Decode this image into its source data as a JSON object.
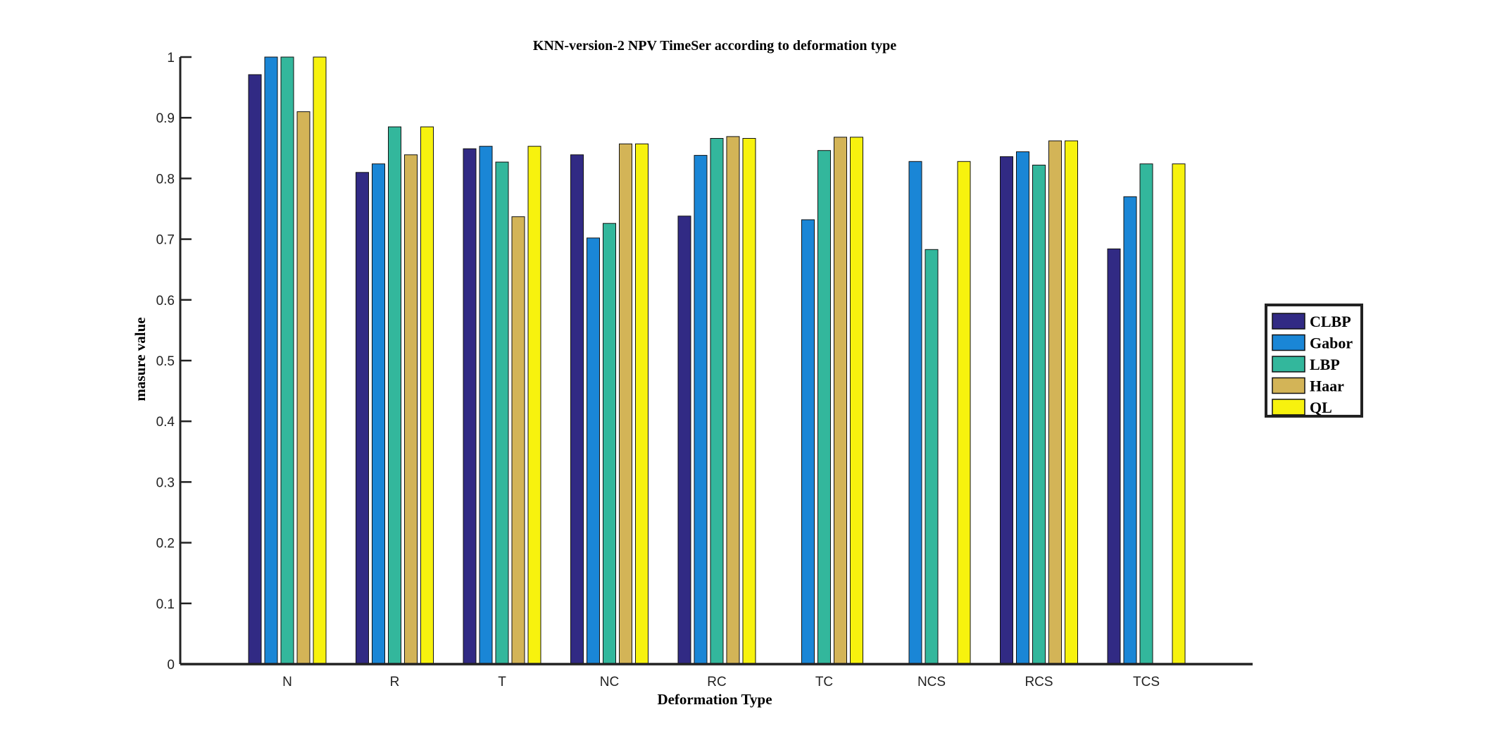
{
  "chart_data": {
    "type": "bar",
    "title": "KNN-version-2 NPV TimeSer according to deformation type",
    "xlabel": "Deformation Type",
    "ylabel": "masure value",
    "ylim": [
      0,
      1
    ],
    "yticks": [
      "0",
      "0.1",
      "0.2",
      "0.3",
      "0.4",
      "0.5",
      "0.6",
      "0.7",
      "0.8",
      "0.9",
      "1"
    ],
    "categories": [
      "N",
      "R",
      "T",
      "NC",
      "RC",
      "TC",
      "NCS",
      "RCS",
      "TCS"
    ],
    "series": [
      {
        "name": "CLBP",
        "color": "#312a84",
        "values": [
          0.971,
          0.81,
          0.849,
          0.839,
          0.738,
          0,
          0,
          0.836,
          0.684
        ]
      },
      {
        "name": "Gabor",
        "color": "#1a86d6",
        "values": [
          1.0,
          0.824,
          0.853,
          0.702,
          0.838,
          0.732,
          0.828,
          0.844,
          0.77
        ]
      },
      {
        "name": "LBP",
        "color": "#33b79c",
        "values": [
          1.0,
          0.885,
          0.827,
          0.726,
          0.866,
          0.846,
          0.683,
          0.822,
          0.824
        ]
      },
      {
        "name": "Haar",
        "color": "#d3b457",
        "values": [
          0.91,
          0.839,
          0.737,
          0.857,
          0.869,
          0.868,
          0,
          0.862,
          0
        ]
      },
      {
        "name": "QL",
        "color": "#f7f20e",
        "values": [
          1.0,
          0.885,
          0.853,
          0.857,
          0.866,
          0.868,
          0.828,
          0.862,
          0.824
        ]
      }
    ],
    "legend_position": "right",
    "grid": false
  }
}
